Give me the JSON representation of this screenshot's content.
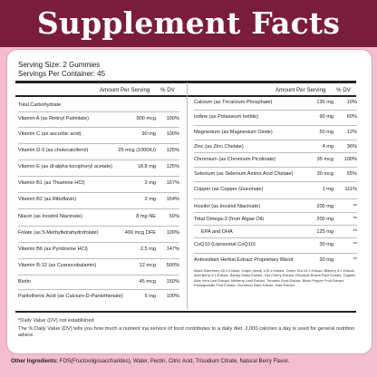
{
  "title": "Supplement Facts",
  "serving_size": "Serving Size: 2 Gummies",
  "servings_per_container": "Servings Per Container: 45",
  "headers": {
    "amount": "Amount Per Serving",
    "dv": "% DV"
  },
  "left_rows": [
    {
      "name": "Total Carbohydrate",
      "amount": "",
      "dv": ""
    },
    {
      "name": "Vitamin A (as Retinyl Palmitate)",
      "amount": "900 mcg",
      "dv": "100%"
    },
    {
      "name": "Vitamin C (as ascorbic acid)",
      "amount": "90 mg",
      "dv": "100%"
    },
    {
      "name": "Vitamin D-3 (as cholecalciferol)",
      "amount": "25 mcg (1000IU)",
      "dv": "125%"
    },
    {
      "name": "Vitamin E (as dl-alpha-tocopheryl acetate)",
      "amount": "18.8 mg",
      "dv": "125%"
    },
    {
      "name": "Vitamin B1 (as Thiamine HCl)",
      "amount": "2 mg",
      "dv": "167%"
    },
    {
      "name": "Vitamin B2 (as Riboflavin)",
      "amount": "2 mg",
      "dv": "154%"
    },
    {
      "name": "Niacin (as Inositol Niacinate)",
      "amount": "8 mg NE",
      "dv": "50%"
    },
    {
      "name": "Folate (as 5-Methyltetrahydrofolate)",
      "amount": "400 mcg DFE",
      "dv": "100%"
    },
    {
      "name": "Vitamin B6 (as Pyridoxine HCl)",
      "amount": "2.5 mg",
      "dv": "147%"
    },
    {
      "name": "Vitamin B-12 (as Cyanocobalamin)",
      "amount": "12 mcg",
      "dv": "500%"
    },
    {
      "name": "Biotin",
      "amount": "45 mcg",
      "dv": "150%"
    },
    {
      "name": "Pantothenic Acid (as Calcium-D-Pantothenate)",
      "amount": "5 mg",
      "dv": "100%"
    }
  ],
  "right_rows": [
    {
      "name": "Calcium (as Tricalcium Phosphate)",
      "amount": "130 mg",
      "dv": "10%"
    },
    {
      "name": "Iodine (as Potassium Iodide)",
      "amount": "90 mg",
      "dv": "60%"
    },
    {
      "name": "Magnesium (as Magnesium Oxide)",
      "amount": "50 mg",
      "dv": "12%"
    },
    {
      "name": "Zinc (as Zinc Chelate)",
      "amount": "4 mg",
      "dv": "36%"
    },
    {
      "name": "Chromium (as Chromium Picolinate)",
      "amount": "35 mcg",
      "dv": "100%"
    },
    {
      "name": "Selenium (as Selenium Amino Acid Chelate)",
      "amount": "30 mcg",
      "dv": "55%"
    },
    {
      "name": "Copper (as Copper Gluconate)",
      "amount": "1 mg",
      "dv": "111%"
    },
    {
      "name": "Inositol (as Inositol Niacinate)",
      "amount": "200 mg",
      "dv": "**"
    },
    {
      "name": "Total Omega-3 (from Algae Oil)",
      "amount": "200 mg",
      "dv": "**"
    },
    {
      "name": "EPA and DHA",
      "amount": "125 mg",
      "dv": "**"
    },
    {
      "name": "CoQ10 (Liposomal CoQ10)",
      "amount": "30 mg",
      "dv": "**"
    },
    {
      "name": "Antioxidant Herbal Extract Proprietary Blend",
      "amount": "30 mg",
      "dv": "**"
    }
  ],
  "blend_ingredients": "Black Elderberry 20:1 Extract, Grape (seed) 120:1 Extract, Green Tea 10:1 Extract, Bilberry 5:1 Extract, Acai Berry 4:1 Extract, Barley Grass Extract, Tart Cherry Extract, Rhodiola Rosea Root Extract, Organic Aloe Vera Leaf Extract, Mulberry Leaf Extract, Turmeric Root Extract, Black Pepper Fruit Extract, Pomegranate Fruit Extract, Cinnamon Bark Extract, Kale Extract.",
  "footnote_1": "*Daily Value (DV) not established",
  "footnote_2": "The % Daily Value (DV) tells you how much a nutrient ina service of food contributes to a daily diet. 2,000 calories a day is used for general nutrition advice.",
  "other_label": "Other Ingredients:",
  "other_text": " FOS(Fructooligosaccharides), Water, Pectin, Citric Acid, Trisodium Citrate, Natural Berry Flavor.",
  "colors": {
    "brand": "#7a1d3c",
    "background": "#f4bdd0",
    "panel": "#ffffff"
  }
}
